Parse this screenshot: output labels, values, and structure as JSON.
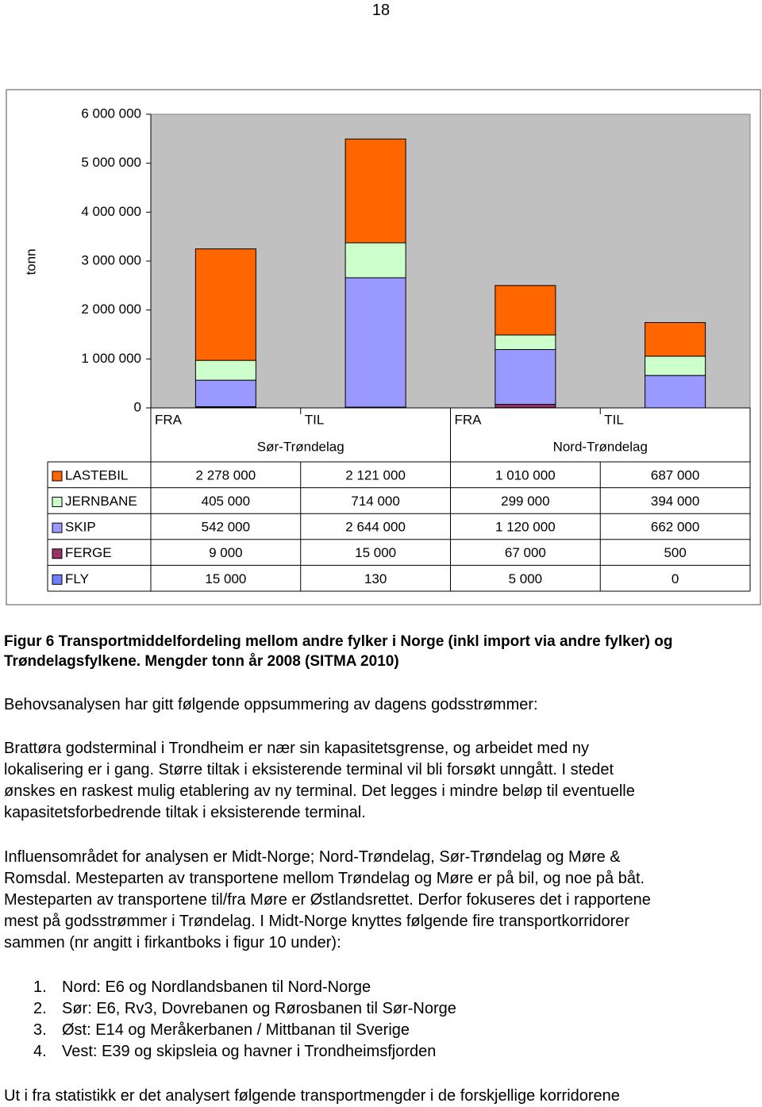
{
  "page_number": "18",
  "chart_data": {
    "type": "stacked_bar",
    "y_label": "tonn",
    "categories": [
      "FRA",
      "TIL",
      "FRA",
      "TIL"
    ],
    "group_labels": [
      "Sør-Trøndelag",
      "Nord-Trøndelag"
    ],
    "ylim": [
      0,
      6000000
    ],
    "yticks": [
      0,
      {
        "value": 1000000,
        "label": "1 000 000"
      },
      {
        "value": 2000000,
        "label": "2 000 000"
      },
      {
        "value": 3000000,
        "label": "3 000 000"
      },
      {
        "value": 4000000,
        "label": "4 000 000"
      },
      {
        "value": 5000000,
        "label": "5 000 000"
      },
      {
        "value": 6000000,
        "label": "6 000 000"
      }
    ],
    "grid": false,
    "plot_background": "#c0c0c0",
    "series": [
      {
        "name": "LASTEBIL",
        "color": "#ff6600",
        "values": [
          2278000,
          2121000,
          1010000,
          687000
        ],
        "value_labels": [
          "2 278 000",
          "2 121 000",
          "1 010 000",
          "687 000"
        ]
      },
      {
        "name": "JERNBANE",
        "color": "#ccffcc",
        "values": [
          405000,
          714000,
          299000,
          394000
        ],
        "value_labels": [
          "405 000",
          "714 000",
          "299 000",
          "394 000"
        ]
      },
      {
        "name": "SKIP",
        "color": "#9999ff",
        "values": [
          542000,
          2644000,
          1120000,
          662000
        ],
        "value_labels": [
          "542 000",
          "2 644 000",
          "1 120 000",
          "662 000"
        ]
      },
      {
        "name": "FERGE",
        "color": "#993366",
        "values": [
          9000,
          15000,
          67000,
          500
        ],
        "value_labels": [
          "9 000",
          "15 000",
          "67 000",
          "500"
        ]
      },
      {
        "name": "FLY",
        "color": "#6f7fff",
        "values": [
          15000,
          130,
          5000,
          0
        ],
        "value_labels": [
          "15 000",
          "130",
          "5 000",
          "0"
        ]
      }
    ]
  },
  "caption": [
    "Figur 6 Transportmiddelfordeling mellom andre fylker i Norge (inkl import via andre fylker) og",
    "Trøndelagsfylkene. Mengder tonn år 2008 (SITMA 2010)"
  ],
  "paragraphs": [
    [
      "Behovsanalysen har gitt følgende oppsummering av dagens godsstrømmer:"
    ],
    [
      "Brattøra godsterminal i Trondheim er nær sin kapasitetsgrense, og arbeidet med ny",
      "lokalisering er i gang. Større tiltak i eksisterende terminal vil bli forsøkt unngått. I stedet",
      "ønskes en raskest mulig etablering av ny terminal. Det legges i mindre beløp til eventuelle",
      "kapasitetsforbedrende tiltak i eksisterende terminal."
    ],
    [
      "Influensområdet for analysen er Midt-Norge; Nord-Trøndelag, Sør-Trøndelag og Møre &",
      "Romsdal. Mesteparten av transportene mellom Trøndelag og Møre er på bil, og noe på båt.",
      "Mesteparten av transportene til/fra Møre er Østlandsrettet. Derfor fokuseres det i rapportene",
      "mest på godsstrømmer i Trøndelag. I Midt-Norge knyttes følgende fire transportkorridorer",
      "sammen (nr angitt i firkantboks i figur 10 under):"
    ]
  ],
  "list": [
    {
      "number": "1.",
      "text": "Nord: E6 og Nordlandsbanen til Nord-Norge"
    },
    {
      "number": "2.",
      "text": "Sør: E6, Rv3, Dovrebanen og Rørosbanen til Sør-Norge"
    },
    {
      "number": "3.",
      "text": "Øst: E14 og Meråkerbanen / Mittbanan til Sverige"
    },
    {
      "number": "4.",
      "text": "Vest: E39 og skipsleia og havner i Trondheimsfjorden"
    }
  ],
  "last_line": "Ut i fra statistikk er det analysert følgende transportmengder i de forskjellige korridorene"
}
